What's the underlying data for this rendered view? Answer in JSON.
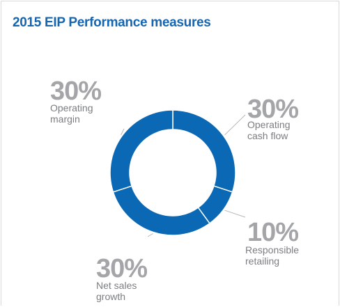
{
  "chart_data": {
    "type": "donut",
    "title": "2015 EIP Performance measures",
    "categories": [
      "Operating cash flow",
      "Responsible retailing",
      "Net sales growth",
      "Operating margin"
    ],
    "values": [
      30,
      10,
      30,
      30
    ],
    "value_labels": [
      "30%",
      "10%",
      "30%",
      "30%"
    ],
    "color": "#0a68b4"
  }
}
